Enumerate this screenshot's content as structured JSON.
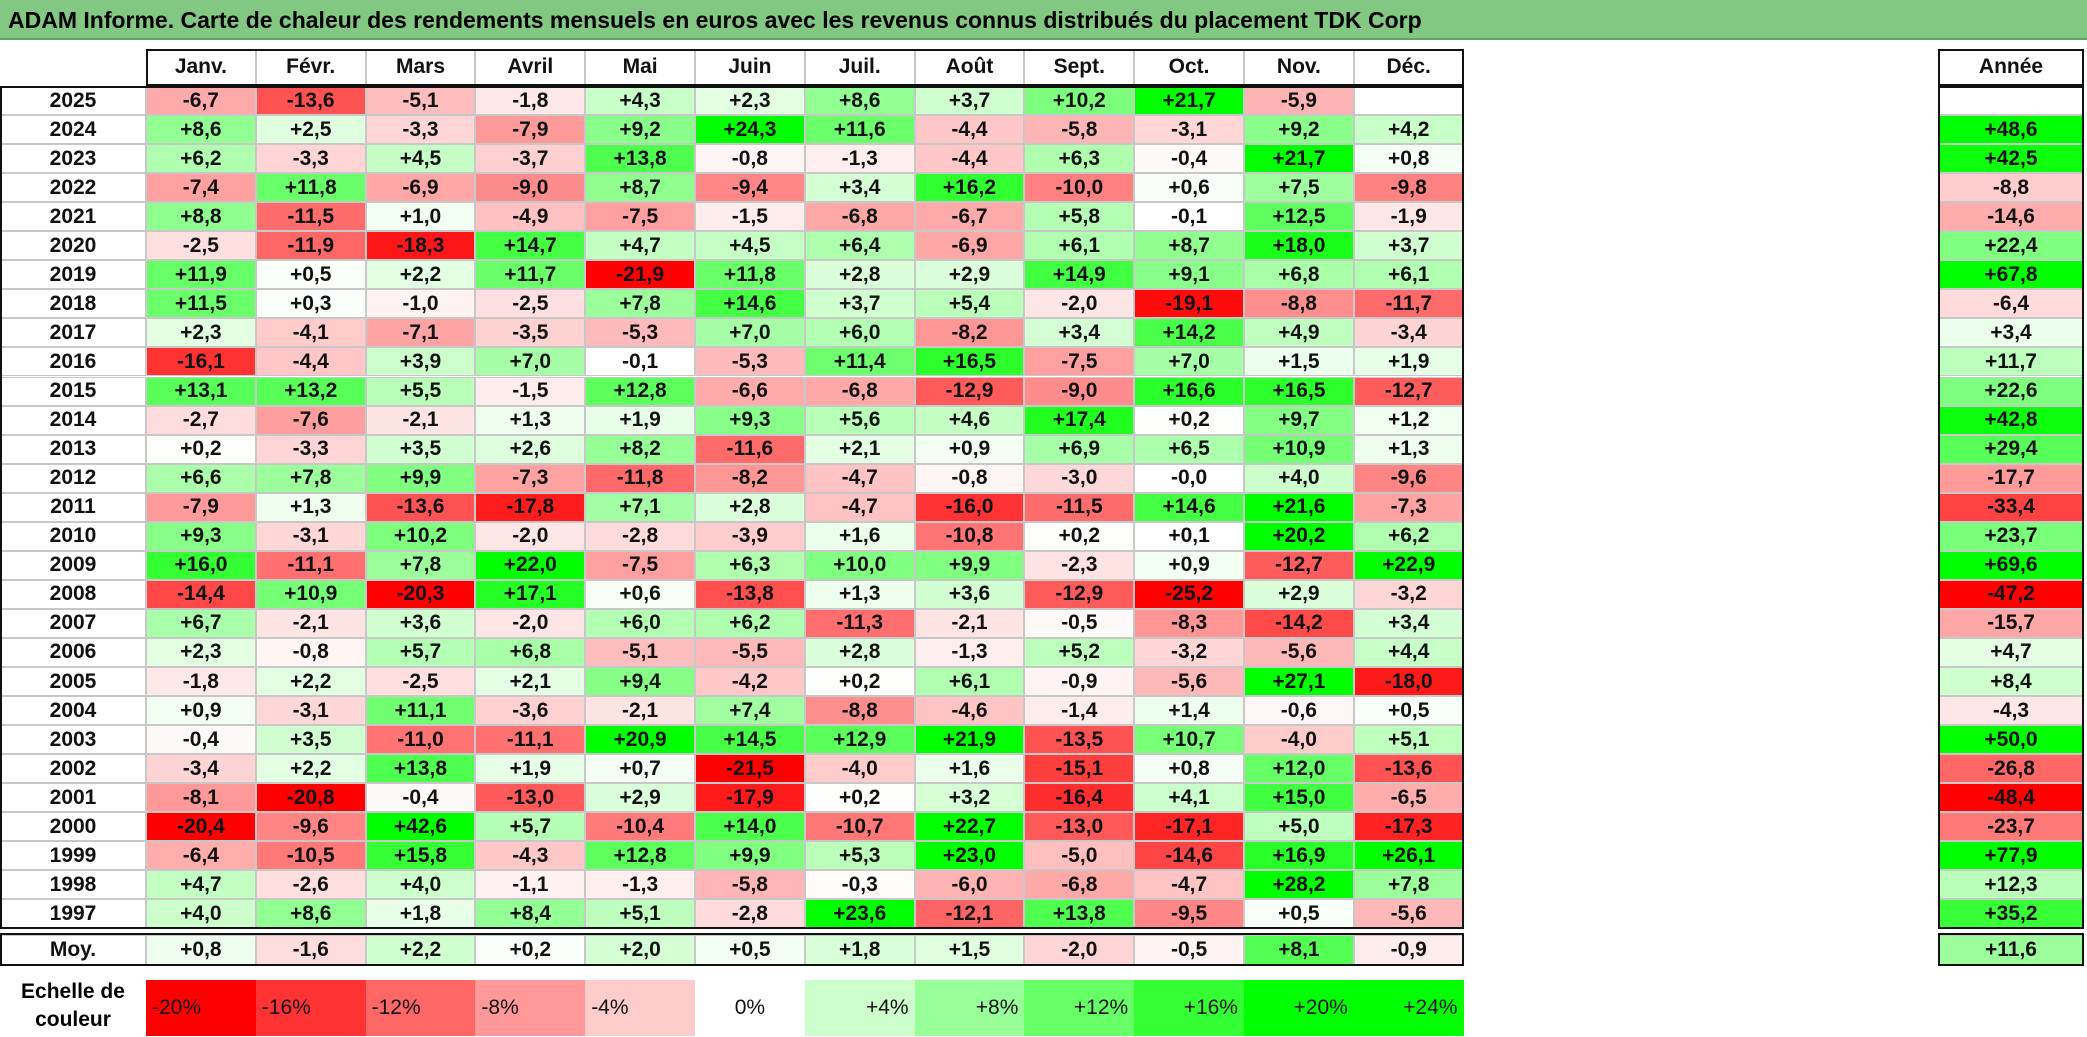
{
  "title": "ADAM Informe. Carte de chaleur des rendements mensuels en euros avec les revenus connus distribués du placement TDK Corp",
  "colors": {
    "neg_max": "#ff0000",
    "neutral": "#ffffff",
    "pos_max": "#00ff00",
    "title_bg": "#82c882"
  },
  "chart_data": {
    "type": "heatmap",
    "title": "ADAM Informe. Carte de chaleur des rendements mensuels en euros avec les revenus connus distribués du placement TDK Corp",
    "columns": [
      "Janv.",
      "Févr.",
      "Mars",
      "Avril",
      "Mai",
      "Juin",
      "Juil.",
      "Août",
      "Sept.",
      "Oct.",
      "Nov.",
      "Déc."
    ],
    "annual_header": "Année",
    "rows": [
      {
        "year": "2025",
        "values": [
          "-6,7",
          "-13,6",
          "-5,1",
          "-1,8",
          "+4,3",
          "+2,3",
          "+8,6",
          "+3,7",
          "+10,2",
          "+21,7",
          "-5,9",
          ""
        ],
        "annual": ""
      },
      {
        "year": "2024",
        "values": [
          "+8,6",
          "+2,5",
          "-3,3",
          "-7,9",
          "+9,2",
          "+24,3",
          "+11,6",
          "-4,4",
          "-5,8",
          "-3,1",
          "+9,2",
          "+4,2"
        ],
        "annual": "+48,6"
      },
      {
        "year": "2023",
        "values": [
          "+6,2",
          "-3,3",
          "+4,5",
          "-3,7",
          "+13,8",
          "-0,8",
          "-1,3",
          "-4,4",
          "+6,3",
          "-0,4",
          "+21,7",
          "+0,8"
        ],
        "annual": "+42,5"
      },
      {
        "year": "2022",
        "values": [
          "-7,4",
          "+11,8",
          "-6,9",
          "-9,0",
          "+8,7",
          "-9,4",
          "+3,4",
          "+16,2",
          "-10,0",
          "+0,6",
          "+7,5",
          "-9,8"
        ],
        "annual": "-8,8"
      },
      {
        "year": "2021",
        "values": [
          "+8,8",
          "-11,5",
          "+1,0",
          "-4,9",
          "-7,5",
          "-1,5",
          "-6,8",
          "-6,7",
          "+5,8",
          "-0,1",
          "+12,5",
          "-1,9"
        ],
        "annual": "-14,6"
      },
      {
        "year": "2020",
        "values": [
          "-2,5",
          "-11,9",
          "-18,3",
          "+14,7",
          "+4,7",
          "+4,5",
          "+6,4",
          "-6,9",
          "+6,1",
          "+8,7",
          "+18,0",
          "+3,7"
        ],
        "annual": "+22,4"
      },
      {
        "year": "2019",
        "values": [
          "+11,9",
          "+0,5",
          "+2,2",
          "+11,7",
          "-21,9",
          "+11,8",
          "+2,8",
          "+2,9",
          "+14,9",
          "+9,1",
          "+6,8",
          "+6,1"
        ],
        "annual": "+67,8"
      },
      {
        "year": "2018",
        "values": [
          "+11,5",
          "+0,3",
          "-1,0",
          "-2,5",
          "+7,8",
          "+14,6",
          "+3,7",
          "+5,4",
          "-2,0",
          "-19,1",
          "-8,8",
          "-11,7"
        ],
        "annual": "-6,4"
      },
      {
        "year": "2017",
        "values": [
          "+2,3",
          "-4,1",
          "-7,1",
          "-3,5",
          "-5,3",
          "+7,0",
          "+6,0",
          "-8,2",
          "+3,4",
          "+14,2",
          "+4,9",
          "-3,4"
        ],
        "annual": "+3,4"
      },
      {
        "year": "2016",
        "values": [
          "-16,1",
          "-4,4",
          "+3,9",
          "+7,0",
          "-0,1",
          "-5,3",
          "+11,4",
          "+16,5",
          "-7,5",
          "+7,0",
          "+1,5",
          "+1,9"
        ],
        "annual": "+11,7"
      },
      {
        "year": "2015",
        "values": [
          "+13,1",
          "+13,2",
          "+5,5",
          "-1,5",
          "+12,8",
          "-6,6",
          "-6,8",
          "-12,9",
          "-9,0",
          "+16,6",
          "+16,5",
          "-12,7"
        ],
        "annual": "+22,6"
      },
      {
        "year": "2014",
        "values": [
          "-2,7",
          "-7,6",
          "-2,1",
          "+1,3",
          "+1,9",
          "+9,3",
          "+5,6",
          "+4,6",
          "+17,4",
          "+0,2",
          "+9,7",
          "+1,2"
        ],
        "annual": "+42,8"
      },
      {
        "year": "2013",
        "values": [
          "+0,2",
          "-3,3",
          "+3,5",
          "+2,6",
          "+8,2",
          "-11,6",
          "+2,1",
          "+0,9",
          "+6,9",
          "+6,5",
          "+10,9",
          "+1,3"
        ],
        "annual": "+29,4"
      },
      {
        "year": "2012",
        "values": [
          "+6,6",
          "+7,8",
          "+9,9",
          "-7,3",
          "-11,8",
          "-8,2",
          "-4,7",
          "-0,8",
          "-3,0",
          "-0,0",
          "+4,0",
          "-9,6"
        ],
        "annual": "-17,7"
      },
      {
        "year": "2011",
        "values": [
          "-7,9",
          "+1,3",
          "-13,6",
          "-17,8",
          "+7,1",
          "+2,8",
          "-4,7",
          "-16,0",
          "-11,5",
          "+14,6",
          "+21,6",
          "-7,3"
        ],
        "annual": "-33,4"
      },
      {
        "year": "2010",
        "values": [
          "+9,3",
          "-3,1",
          "+10,2",
          "-2,0",
          "-2,8",
          "-3,9",
          "+1,6",
          "-10,8",
          "+0,2",
          "+0,1",
          "+20,2",
          "+6,2"
        ],
        "annual": "+23,7"
      },
      {
        "year": "2009",
        "values": [
          "+16,0",
          "-11,1",
          "+7,8",
          "+22,0",
          "-7,5",
          "+6,3",
          "+10,0",
          "+9,9",
          "-2,3",
          "+0,9",
          "-12,7",
          "+22,9"
        ],
        "annual": "+69,6"
      },
      {
        "year": "2008",
        "values": [
          "-14,4",
          "+10,9",
          "-20,3",
          "+17,1",
          "+0,6",
          "-13,8",
          "+1,3",
          "+3,6",
          "-12,9",
          "-25,2",
          "+2,9",
          "-3,2"
        ],
        "annual": "-47,2"
      },
      {
        "year": "2007",
        "values": [
          "+6,7",
          "-2,1",
          "+3,6",
          "-2,0",
          "+6,0",
          "+6,2",
          "-11,3",
          "-2,1",
          "-0,5",
          "-8,3",
          "-14,2",
          "+3,4"
        ],
        "annual": "-15,7"
      },
      {
        "year": "2006",
        "values": [
          "+2,3",
          "-0,8",
          "+5,7",
          "+6,8",
          "-5,1",
          "-5,5",
          "+2,8",
          "-1,3",
          "+5,2",
          "-3,2",
          "-5,6",
          "+4,4"
        ],
        "annual": "+4,7"
      },
      {
        "year": "2005",
        "values": [
          "-1,8",
          "+2,2",
          "-2,5",
          "+2,1",
          "+9,4",
          "-4,2",
          "+0,2",
          "+6,1",
          "-0,9",
          "-5,6",
          "+27,1",
          "-18,0"
        ],
        "annual": "+8,4"
      },
      {
        "year": "2004",
        "values": [
          "+0,9",
          "-3,1",
          "+11,1",
          "-3,6",
          "-2,1",
          "+7,4",
          "-8,8",
          "-4,6",
          "-1,4",
          "+1,4",
          "-0,6",
          "+0,5"
        ],
        "annual": "-4,3"
      },
      {
        "year": "2003",
        "values": [
          "-0,4",
          "+3,5",
          "-11,0",
          "-11,1",
          "+20,9",
          "+14,5",
          "+12,9",
          "+21,9",
          "-13,5",
          "+10,7",
          "-4,0",
          "+5,1"
        ],
        "annual": "+50,0"
      },
      {
        "year": "2002",
        "values": [
          "-3,4",
          "+2,2",
          "+13,8",
          "+1,9",
          "+0,7",
          "-21,5",
          "-4,0",
          "+1,6",
          "-15,1",
          "+0,8",
          "+12,0",
          "-13,6"
        ],
        "annual": "-26,8"
      },
      {
        "year": "2001",
        "values": [
          "-8,1",
          "-20,8",
          "-0,4",
          "-13,0",
          "+2,9",
          "-17,9",
          "+0,2",
          "+3,2",
          "-16,4",
          "+4,1",
          "+15,0",
          "-6,5"
        ],
        "annual": "-48,4"
      },
      {
        "year": "2000",
        "values": [
          "-20,4",
          "-9,6",
          "+42,6",
          "+5,7",
          "-10,4",
          "+14,0",
          "-10,7",
          "+22,7",
          "-13,0",
          "-17,1",
          "+5,0",
          "-17,3"
        ],
        "annual": "-23,7"
      },
      {
        "year": "1999",
        "values": [
          "-6,4",
          "-10,5",
          "+15,8",
          "-4,3",
          "+12,8",
          "+9,9",
          "+5,3",
          "+23,0",
          "-5,0",
          "-14,6",
          "+16,9",
          "+26,1"
        ],
        "annual": "+77,9"
      },
      {
        "year": "1998",
        "values": [
          "+4,7",
          "-2,6",
          "+4,0",
          "-1,1",
          "-1,3",
          "-5,8",
          "-0,3",
          "-6,0",
          "-6,8",
          "-4,7",
          "+28,2",
          "+7,8"
        ],
        "annual": "+12,3"
      },
      {
        "year": "1997",
        "values": [
          "+4,0",
          "+8,6",
          "+1,8",
          "+8,4",
          "+5,1",
          "-2,8",
          "+23,6",
          "-12,1",
          "+13,8",
          "-9,5",
          "+0,5",
          "-5,6"
        ],
        "annual": "+35,2"
      }
    ],
    "average": {
      "label": "Moy.",
      "values": [
        "+0,8",
        "-1,6",
        "+2,2",
        "+0,2",
        "+2,0",
        "+0,5",
        "+1,8",
        "+1,5",
        "-2,0",
        "-0,5",
        "+8,1",
        "-0,9"
      ],
      "annual": "+11,6"
    },
    "scale": {
      "label_line1": "Echelle de",
      "label_line2": "couleur",
      "items": [
        {
          "label": "-20%",
          "value": -20
        },
        {
          "label": "-16%",
          "value": -16
        },
        {
          "label": "-12%",
          "value": -12
        },
        {
          "label": "-8%",
          "value": -8
        },
        {
          "label": "-4%",
          "value": -4
        },
        {
          "label": "0%",
          "value": 0
        },
        {
          "label": "+4%",
          "value": 4
        },
        {
          "label": "+8%",
          "value": 8
        },
        {
          "label": "+12%",
          "value": 12
        },
        {
          "label": "+16%",
          "value": 16
        },
        {
          "label": "+20%",
          "value": 20
        },
        {
          "label": "+24%",
          "value": 24
        }
      ]
    }
  }
}
